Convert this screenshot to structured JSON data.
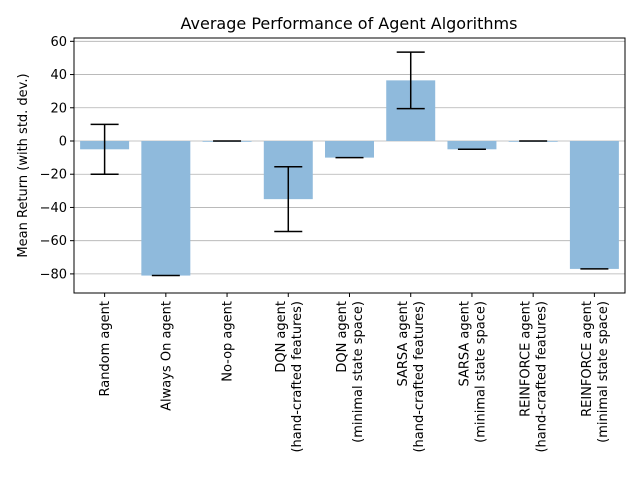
{
  "chart_data": {
    "type": "bar",
    "title": "Average Performance of Agent Algorithms",
    "xlabel": "",
    "ylabel": "Mean Return (with std. dev.)",
    "categories": [
      [
        "Random agent"
      ],
      [
        "Always On agent"
      ],
      [
        "No-op agent"
      ],
      [
        "DQN agent",
        "(hand-crafted features)"
      ],
      [
        "DQN agent",
        "(minimal state space)"
      ],
      [
        "SARSA agent",
        "(hand-crafted features)"
      ],
      [
        "SARSA agent",
        "(minimal state space)"
      ],
      [
        "REINFORCE agent",
        "(hand-crafted features)"
      ],
      [
        "REINFORCE agent",
        "(minimal state space)"
      ]
    ],
    "values": [
      -5,
      -81,
      0,
      -35,
      -10,
      36.5,
      -5,
      0,
      -77
    ],
    "errors": [
      15,
      0,
      0,
      19.5,
      0,
      17,
      0,
      0,
      0
    ],
    "ylim": [
      -91.5,
      62
    ],
    "yticks": [
      -80,
      -60,
      -40,
      -20,
      0,
      20,
      40,
      60
    ],
    "ytick_labels": [
      "−80",
      "−60",
      "−40",
      "−20",
      "0",
      "20",
      "40",
      "60"
    ],
    "grid": "horizontal",
    "bar_color": "#8fbadc",
    "error_color": "#000000"
  }
}
